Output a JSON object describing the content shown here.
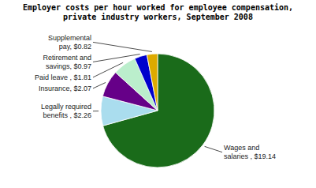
{
  "chart_data": {
    "type": "pie",
    "title": "Employer costs per hour worked for employee compensation,\nprivate industry workers, September 2008",
    "categories": [
      "Wages and\nsalaries , $19.14",
      "Legally required\nbenefits , $2.26",
      "Insurance, $2.07",
      "Paid leave , $1.81",
      "Retirement and\nsavings, $0.97",
      "Supplemental\npay, $0.82"
    ],
    "values": [
      19.14,
      2.26,
      2.07,
      1.81,
      0.97,
      0.82
    ],
    "colors": [
      "#1a6b1a",
      "#aaddee",
      "#660088",
      "#bbeecc",
      "#0000cc",
      "#ddaa00"
    ]
  }
}
